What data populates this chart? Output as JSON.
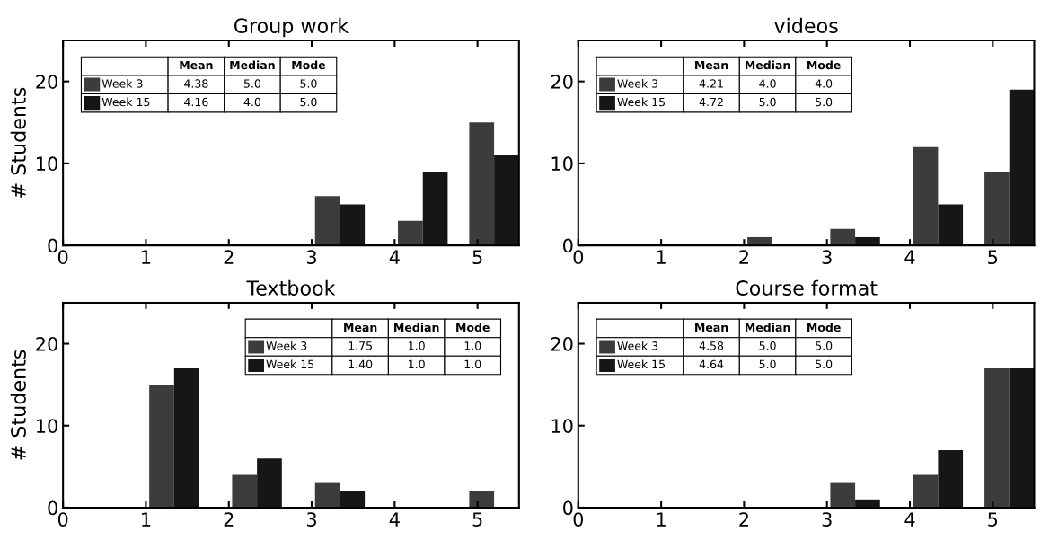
{
  "chart_data": [
    {
      "type": "bar",
      "title": "Group work",
      "ylabel": "# Students",
      "x": [
        0,
        1,
        2,
        3,
        4,
        5
      ],
      "xlim": [
        0,
        5.5
      ],
      "xticks": [
        0,
        1,
        2,
        3,
        4,
        5
      ],
      "ylim": [
        0,
        25
      ],
      "yticks": [
        0,
        10,
        20
      ],
      "legend": "top left",
      "series": [
        {
          "name": "Week 3",
          "color": "#3c3c3c",
          "values": [
            0,
            0,
            0,
            6,
            3,
            15
          ]
        },
        {
          "name": "Week 15",
          "color": "#161616",
          "values": [
            0,
            0,
            0,
            5,
            9,
            11
          ]
        }
      ],
      "annotations": [
        "Mean",
        "Median",
        "Mode",
        "4.38",
        "5.0",
        "5.0",
        "4.16",
        "4.0",
        "5.0"
      ]
    },
    {
      "type": "bar",
      "title": "videos",
      "x": [
        0,
        1,
        2,
        3,
        4,
        5
      ],
      "xlim": [
        0,
        5.5
      ],
      "xticks": [
        0,
        1,
        2,
        3,
        4,
        5
      ],
      "ylim": [
        0,
        25
      ],
      "yticks": [
        0,
        10,
        20
      ],
      "legend": "top left",
      "series": [
        {
          "name": "Week 3",
          "color": "#3c3c3c",
          "values": [
            0,
            0,
            1,
            2,
            12,
            9
          ]
        },
        {
          "name": "Week 15",
          "color": "#161616",
          "values": [
            0,
            0,
            0,
            1,
            5,
            19
          ]
        }
      ],
      "annotations": [
        "Mean",
        "Median",
        "Mode",
        "4.21",
        "4.0",
        "4.0",
        "4.72",
        "5.0",
        "5.0"
      ]
    },
    {
      "type": "bar",
      "title": "Textbook",
      "ylabel": "# Students",
      "x": [
        0,
        1,
        2,
        3,
        4,
        5
      ],
      "xlim": [
        0,
        5.5
      ],
      "xticks": [
        0,
        1,
        2,
        3,
        4,
        5
      ],
      "ylim": [
        0,
        25
      ],
      "yticks": [
        0,
        10,
        20
      ],
      "legend": "top right",
      "series": [
        {
          "name": "Week 3",
          "color": "#3c3c3c",
          "values": [
            0,
            15,
            4,
            3,
            0,
            2
          ]
        },
        {
          "name": "Week 15",
          "color": "#161616",
          "values": [
            0,
            17,
            6,
            2,
            0,
            0
          ]
        }
      ],
      "annotations": [
        "Mean",
        "Median",
        "Mode",
        "1.75",
        "1.0",
        "1.0",
        "1.40",
        "1.0",
        "1.0"
      ]
    },
    {
      "type": "bar",
      "title": "Course format",
      "x": [
        0,
        1,
        2,
        3,
        4,
        5
      ],
      "xlim": [
        0,
        5.5
      ],
      "xticks": [
        0,
        1,
        2,
        3,
        4,
        5
      ],
      "ylim": [
        0,
        25
      ],
      "yticks": [
        0,
        10,
        20
      ],
      "legend": "top left",
      "series": [
        {
          "name": "Week 3",
          "color": "#3c3c3c",
          "values": [
            0,
            0,
            0,
            3,
            4,
            17
          ]
        },
        {
          "name": "Week 15",
          "color": "#161616",
          "values": [
            0,
            0,
            0,
            1,
            7,
            17
          ]
        }
      ],
      "annotations": [
        "Mean",
        "Median",
        "Mode",
        "4.58",
        "5.0",
        "5.0",
        "4.64",
        "5.0",
        "5.0"
      ]
    }
  ]
}
